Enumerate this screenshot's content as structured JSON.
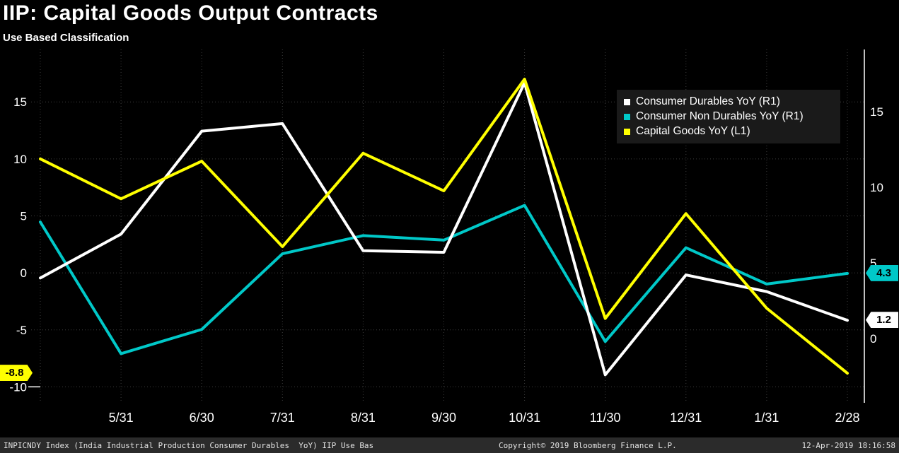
{
  "chart_data": {
    "type": "line",
    "title": "IIP: Capital Goods Output Contracts",
    "subtitle": "Use Based Classification",
    "x_labels": [
      "",
      "5/31",
      "6/30",
      "7/31",
      "8/31",
      "9/30",
      "10/31",
      "11/30",
      "12/31",
      "1/31",
      "2/28"
    ],
    "grid": "dotted",
    "legend_position": "top-right",
    "axes": {
      "left": {
        "name": "L1",
        "ticks": [
          15,
          10,
          5,
          0,
          -5,
          -10
        ],
        "min": -11.4,
        "max": 19.6
      },
      "right": {
        "name": "R1",
        "ticks": [
          15,
          10,
          5,
          0
        ],
        "min": -4.25,
        "max": 19.1
      }
    },
    "series": [
      {
        "name": "Consumer Durables YoY (R1)",
        "axis": "right",
        "color": "#ffffff",
        "values": [
          4.0,
          6.9,
          13.7,
          14.2,
          5.8,
          5.7,
          16.9,
          -2.4,
          4.2,
          3.1,
          1.2
        ]
      },
      {
        "name": "Consumer Non Durables YoY (R1)",
        "axis": "right",
        "color": "#00c8c8",
        "values": [
          7.7,
          -1.0,
          0.6,
          5.6,
          6.8,
          6.5,
          8.8,
          -0.2,
          6.0,
          3.6,
          4.3
        ]
      },
      {
        "name": "Capital Goods YoY (L1)",
        "axis": "left",
        "color": "#ffff00",
        "values": [
          10.0,
          6.5,
          9.8,
          2.3,
          10.5,
          7.2,
          17.0,
          -4.0,
          5.2,
          -3.1,
          -8.8
        ]
      }
    ],
    "badges": [
      {
        "text": "-8.8",
        "value": -8.8,
        "axis": "left",
        "side": "left",
        "color": "#ffff00"
      },
      {
        "text": "4.3",
        "value": 4.3,
        "axis": "right",
        "side": "right",
        "color": "#00c8c8"
      },
      {
        "text": "1.2",
        "value": 1.2,
        "axis": "right",
        "side": "right",
        "color": "#ffffff"
      }
    ]
  },
  "footer": {
    "left": "INPICNDY Index (India Industrial Production Consumer Durables  YoY) IIP Use Bas",
    "center": "Copyright© 2019 Bloomberg Finance L.P.",
    "right": "12-Apr-2019 18:16:58"
  }
}
